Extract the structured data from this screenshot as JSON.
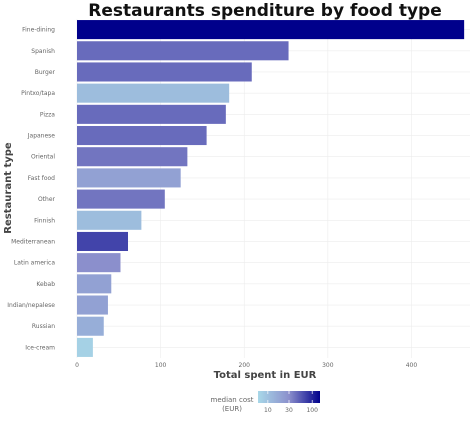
{
  "chart_data": {
    "type": "bar",
    "orientation": "horizontal",
    "title": "Restaurants spenditure by food type",
    "xlabel": "Total spent in EUR",
    "ylabel": "Restaurant type",
    "xlim": [
      0,
      470
    ],
    "x_ticks": [
      0,
      100,
      200,
      300,
      400
    ],
    "grid": true,
    "categories": [
      "Fine-dining",
      "Spanish",
      "Burger",
      "Pintxo/tapa",
      "Pizza",
      "Japanese",
      "Oriental",
      "Fast food",
      "Other",
      "Finnish",
      "Mediterranean",
      "Latin america",
      "Kebab",
      "Indian/nepalese",
      "Russian",
      "Ice-cream"
    ],
    "values": [
      463,
      253,
      209,
      182,
      178,
      155,
      132,
      124,
      105,
      77,
      61,
      52,
      41,
      37,
      32,
      19
    ],
    "median_cost": [
      150,
      45,
      45,
      11,
      45,
      45,
      40,
      20,
      40,
      11,
      70,
      30,
      20,
      20,
      15,
      7
    ],
    "legend": {
      "title_line1": "median cost",
      "title_line2": "(EUR)",
      "ticks": [
        10,
        30,
        100
      ],
      "scale": "log",
      "range": [
        6,
        150
      ],
      "placement": "bottom"
    }
  }
}
